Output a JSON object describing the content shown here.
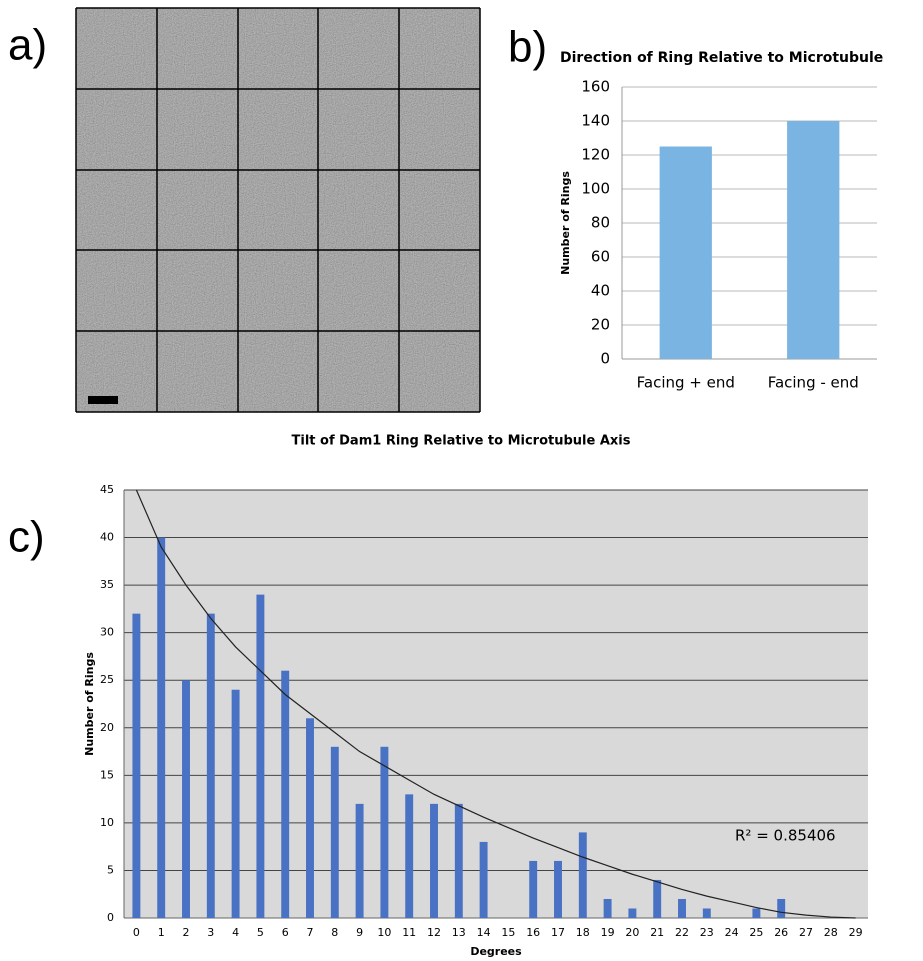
{
  "image_panel": {
    "panel_label": "a)"
  },
  "chart_data": [
    {
      "type": "bar",
      "panel_label": "b)",
      "title": "Direction of Ring Relative to Microtubule",
      "y_label": "Number of Rings",
      "categories": [
        "Facing + end",
        "Facing - end"
      ],
      "values": [
        125,
        140
      ],
      "color": "#7ab4e2",
      "ylim": [
        0,
        160
      ],
      "yticks": [
        0,
        20,
        40,
        60,
        80,
        100,
        120,
        140,
        160
      ],
      "grid": true,
      "plot_background": "#ffffff",
      "grid_color": "#b8b8b8"
    },
    {
      "type": "bar",
      "panel_label": "c)",
      "title": "Tilt of Dam1 Ring Relative to Microtubule Axis",
      "x_label": "Degrees",
      "y_label": "Number of Rings",
      "categories": [
        "0",
        "1",
        "2",
        "3",
        "4",
        "5",
        "6",
        "7",
        "8",
        "9",
        "10",
        "11",
        "12",
        "13",
        "14",
        "15",
        "16",
        "17",
        "18",
        "19",
        "20",
        "21",
        "22",
        "23",
        "24",
        "25",
        "26",
        "27",
        "28",
        "29"
      ],
      "values": [
        32,
        40,
        25,
        32,
        24,
        34,
        26,
        21,
        18,
        12,
        18,
        13,
        12,
        12,
        8,
        0,
        6,
        6,
        9,
        2,
        1,
        4,
        2,
        1,
        0,
        1,
        2,
        0,
        0,
        0
      ],
      "color": "#4a72c4",
      "trendline": {
        "color": "#222222",
        "values": [
          45,
          39,
          35,
          31.5,
          28.5,
          26,
          23.5,
          21.5,
          19.5,
          17.5,
          16,
          14.5,
          13,
          11.8,
          10.6,
          9.5,
          8.4,
          7.4,
          6.4,
          5.5,
          4.6,
          3.8,
          3,
          2.3,
          1.7,
          1.1,
          0.6,
          0.3,
          0.1,
          0
        ]
      },
      "annotation": "R² = 0.85406",
      "ylim": [
        0,
        45
      ],
      "yticks": [
        0,
        5,
        10,
        15,
        20,
        25,
        30,
        35,
        40,
        45
      ],
      "grid": true,
      "plot_background": "#d9d9d9",
      "grid_color": "#444444"
    }
  ]
}
